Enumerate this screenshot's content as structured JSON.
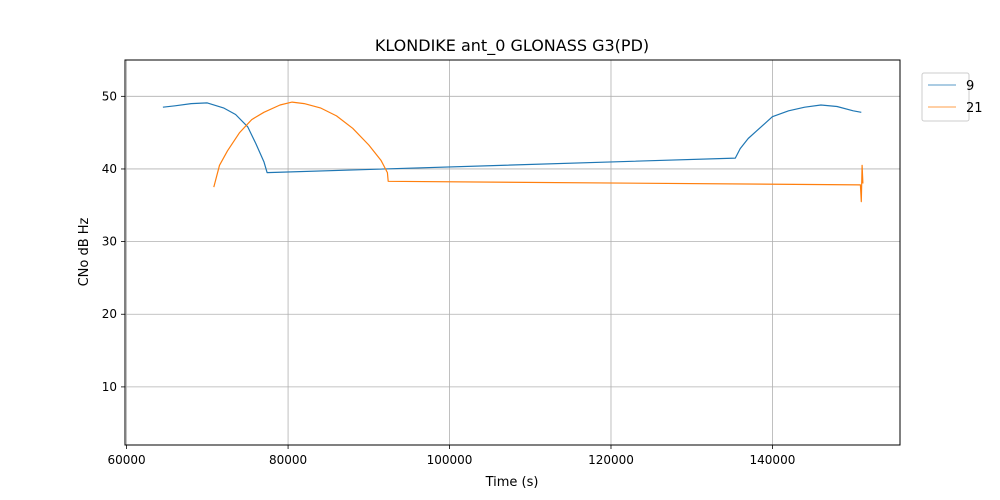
{
  "chart_data": {
    "type": "line",
    "title": "KLONDIKE ant_0 GLONASS G3(PD)",
    "xlabel": "Time (s)",
    "ylabel": "CNo dB Hz",
    "xlim": [
      59800,
      155800
    ],
    "ylim": [
      2,
      55
    ],
    "xticks": [
      60000,
      80000,
      100000,
      120000,
      140000
    ],
    "yticks": [
      10,
      20,
      30,
      40,
      50
    ],
    "grid": true,
    "legend_position": "upper-right-outside",
    "series": [
      {
        "name": "9",
        "color": "#1f77b4",
        "points": [
          [
            64500,
            48.5
          ],
          [
            66000,
            48.7
          ],
          [
            68000,
            49.0
          ],
          [
            70000,
            49.1
          ],
          [
            72000,
            48.4
          ],
          [
            73500,
            47.5
          ],
          [
            75000,
            45.8
          ],
          [
            76000,
            43.5
          ],
          [
            77000,
            41.0
          ],
          [
            77400,
            39.5
          ],
          [
            135400,
            41.5
          ],
          [
            136000,
            42.8
          ],
          [
            137000,
            44.2
          ],
          [
            138000,
            45.2
          ],
          [
            139000,
            46.2
          ],
          [
            140000,
            47.2
          ],
          [
            142000,
            48.0
          ],
          [
            144000,
            48.5
          ],
          [
            146000,
            48.8
          ],
          [
            148000,
            48.6
          ],
          [
            150000,
            48.0
          ],
          [
            151000,
            47.8
          ]
        ]
      },
      {
        "name": "21",
        "color": "#ff7f0e",
        "points": [
          [
            70800,
            37.5
          ],
          [
            71500,
            40.5
          ],
          [
            72500,
            42.5
          ],
          [
            74000,
            45.0
          ],
          [
            75500,
            46.8
          ],
          [
            77000,
            47.8
          ],
          [
            79000,
            48.8
          ],
          [
            80500,
            49.2
          ],
          [
            82000,
            49.0
          ],
          [
            84000,
            48.4
          ],
          [
            86000,
            47.3
          ],
          [
            88000,
            45.6
          ],
          [
            90000,
            43.3
          ],
          [
            91500,
            41.2
          ],
          [
            92300,
            39.5
          ],
          [
            92400,
            38.3
          ],
          [
            150900,
            37.8
          ],
          [
            151000,
            35.5
          ],
          [
            151100,
            40.5
          ],
          [
            151200,
            38.0
          ]
        ]
      }
    ]
  }
}
